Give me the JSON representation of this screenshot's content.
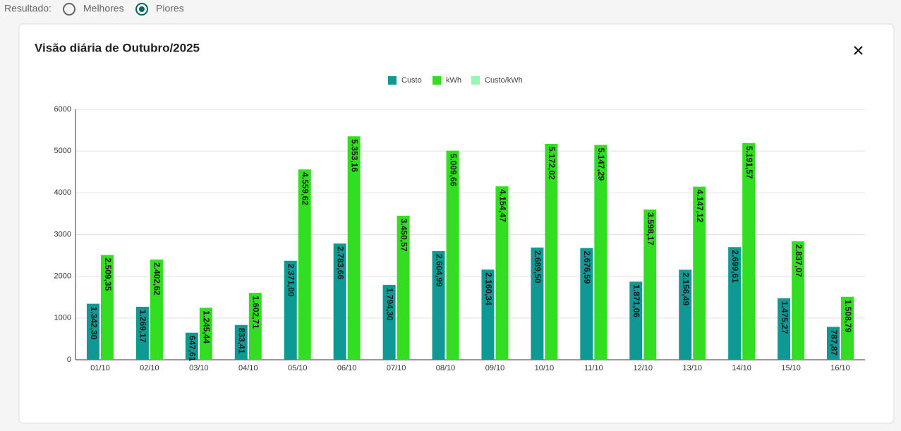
{
  "filter": {
    "label": "Resultado:",
    "options": [
      "Melhores",
      "Piores"
    ],
    "selected": 1
  },
  "modal": {
    "title": "Visão diária de Outubro/2025"
  },
  "chart_data": {
    "type": "bar",
    "categories": [
      "01/10",
      "02/10",
      "03/10",
      "04/10",
      "05/10",
      "06/10",
      "07/10",
      "08/10",
      "09/10",
      "10/10",
      "11/10",
      "12/10",
      "13/10",
      "14/10",
      "15/10",
      "16/10"
    ],
    "series": [
      {
        "name": "Custo",
        "color": "#0e9994",
        "values": [
          1342.3,
          1269.17,
          647.61,
          833.41,
          2371.0,
          2783.66,
          1794.3,
          2604.99,
          2160.34,
          2689.5,
          2676.59,
          1871.06,
          2156.49,
          2699.61,
          1475.27,
          787.87
        ],
        "value_labels": [
          "1.342,30",
          "1.269,17",
          "647,61",
          "833,41",
          "2.371,00",
          "2.783,66",
          "1.794,30",
          "2.604,99",
          "2.160,34",
          "2.689,50",
          "2.676,59",
          "1.871,06",
          "2.156,49",
          "2.699,61",
          "1.475,27",
          "787,87"
        ]
      },
      {
        "name": "kWh",
        "color": "#33dd22",
        "values": [
          2509.35,
          2402.62,
          1245.44,
          1602.71,
          4559.62,
          5353.16,
          3450.57,
          5009.66,
          4154.47,
          5172.02,
          5147.29,
          3598.17,
          4147.12,
          5191.57,
          2837.07,
          1508.79
        ],
        "value_labels": [
          "2.509,35",
          "2.402,62",
          "1.245,44",
          "1.602,71",
          "4.559,62",
          "5.353,16",
          "3.450,57",
          "5.009,66",
          "4.154,47",
          "5.172,02",
          "5.147,29",
          "3.598,17",
          "4.147,12",
          "5.191,57",
          "2.837,07",
          "1.508,79"
        ]
      },
      {
        "name": "Custo/kWh",
        "color": "#99f5b4",
        "values": [
          null,
          null,
          null,
          null,
          null,
          null,
          null,
          null,
          null,
          null,
          null,
          null,
          null,
          null,
          null,
          null
        ]
      }
    ],
    "ylim": [
      0,
      6000
    ],
    "yticks": [
      0,
      1000,
      2000,
      3000,
      4000,
      5000,
      6000
    ],
    "grid": true,
    "legend": "top"
  }
}
